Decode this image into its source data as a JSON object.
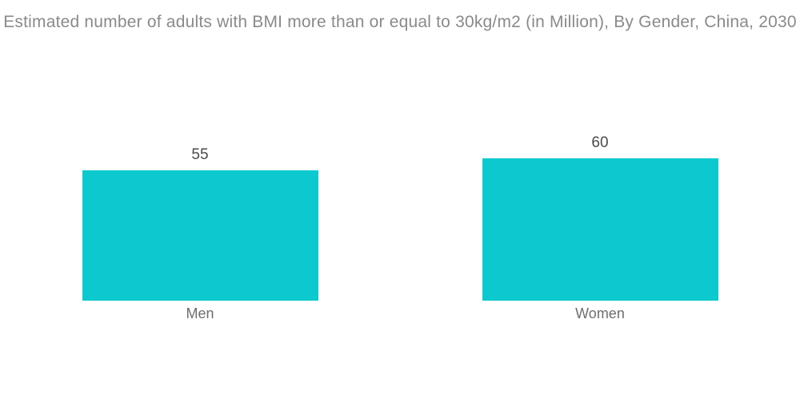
{
  "chart_data": {
    "type": "bar",
    "title": "Estimated number of adults with BMI more than or equal to 30kg/m2 (in Million), By Gender, China, 2030",
    "categories": [
      "Men",
      "Women"
    ],
    "values": [
      55,
      60
    ],
    "value_labels": [
      "55",
      "60"
    ],
    "series": [
      {
        "name": "Adults with BMI >= 30kg/m2 (in Million)",
        "values": [
          55,
          60
        ]
      }
    ],
    "xlabel": "",
    "ylabel": "",
    "ylim": [
      0,
      63
    ],
    "grid": false,
    "legend_visible": false,
    "axes_visible": false,
    "colors": {
      "bar": "#0cc9cf",
      "title_text": "#8a8a8a",
      "value_label_text": "#4a4a4a",
      "category_label_text": "#6e6e6e",
      "background": "#ffffff"
    }
  }
}
